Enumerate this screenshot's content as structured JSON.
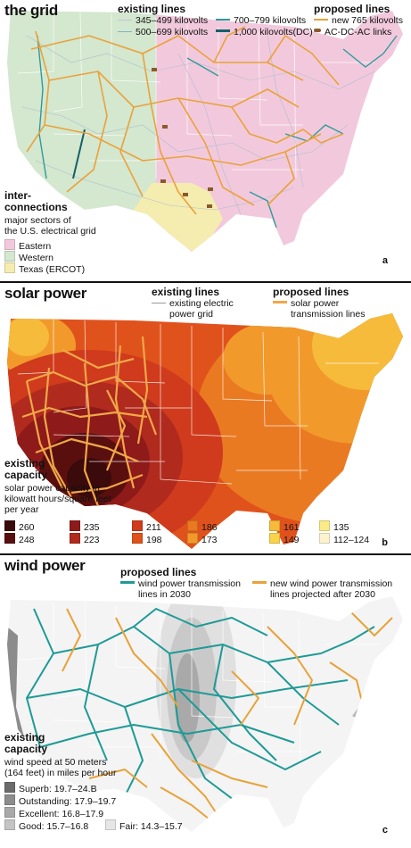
{
  "panel_a": {
    "title": "the grid",
    "existing_heading": "existing lines",
    "existing": [
      {
        "label": "345–499 kilovolts",
        "color": "#b9c9d9"
      },
      {
        "label": "500–699 kilovolts",
        "color": "#7fb4c8"
      },
      {
        "label": "700–799 kilovolts",
        "color": "#2e9b9b"
      },
      {
        "label": "1,000 kilovolts(DC)",
        "color": "#16606a"
      }
    ],
    "proposed_heading": "proposed lines",
    "proposed": [
      {
        "label": "new 765 kilovolts",
        "color": "#e9a23b"
      },
      {
        "label": "AC-DC-AC links",
        "color": "#8a5a2b"
      }
    ],
    "inter_heading_1": "inter-",
    "inter_heading_2": "connections",
    "inter_sub_1": "major sectors of",
    "inter_sub_2": "the U.S. electrical grid",
    "sectors": [
      {
        "label": "Eastern",
        "color": "#f2c9dc"
      },
      {
        "label": "Western",
        "color": "#d4e7cf"
      },
      {
        "label": "Texas (ERCOT)",
        "color": "#f5ecb0"
      }
    ],
    "letter": "a"
  },
  "panel_b": {
    "title": "solar power",
    "existing_heading": "existing lines",
    "existing_label_1": "existing electric",
    "existing_label_2": "power grid",
    "proposed_heading": "proposed lines",
    "proposed_label_1": "solar power",
    "proposed_label_2": "transmission lines",
    "capacity_heading_1": "existing",
    "capacity_heading_2": "capacity",
    "capacity_sub_1": "solar power capacity in",
    "capacity_sub_2": "kilowatt hours/square feet",
    "capacity_sub_3": "per year",
    "scale": [
      {
        "label": "260",
        "color": "#3b0a0a"
      },
      {
        "label": "248",
        "color": "#5a0f0f"
      },
      {
        "label": "235",
        "color": "#8e1a1a"
      },
      {
        "label": "223",
        "color": "#b02a1e"
      },
      {
        "label": "211",
        "color": "#cf3b1c"
      },
      {
        "label": "198",
        "color": "#e0521c"
      },
      {
        "label": "186",
        "color": "#ea7a22"
      },
      {
        "label": "173",
        "color": "#f19a2b"
      },
      {
        "label": "161",
        "color": "#f6bb3a"
      },
      {
        "label": "149",
        "color": "#f8d44b"
      },
      {
        "label": "135",
        "color": "#faea88"
      },
      {
        "label": "112–124",
        "color": "#fbf3cf"
      }
    ],
    "letter": "b"
  },
  "panel_c": {
    "title": "wind power",
    "proposed_heading": "proposed lines",
    "line_2030_1": "wind power transmission",
    "line_2030_2": "lines in 2030",
    "line_after_1": "new wind power transmission",
    "line_after_2": "lines projected after 2030",
    "color_2030": "#1f9a96",
    "color_after": "#e8a23a",
    "capacity_heading_1": "existing",
    "capacity_heading_2": "capacity",
    "capacity_sub_1": "wind speed at 50 meters",
    "capacity_sub_2": "(164 feet) in miles per hour",
    "scale": [
      {
        "label": "Superb: 19.7–24.B",
        "color": "#6b6b6b"
      },
      {
        "label": "Outstanding: 17.9–19.7",
        "color": "#8c8c8c"
      },
      {
        "label": "Excellent: 16.8–17.9",
        "color": "#a9a9a9"
      },
      {
        "label": "Good: 15.7–16.8",
        "color": "#c4c4c4"
      },
      {
        "label": "Fair: 14.3–15.7",
        "color": "#e6e6e6"
      }
    ],
    "letter": "c"
  }
}
